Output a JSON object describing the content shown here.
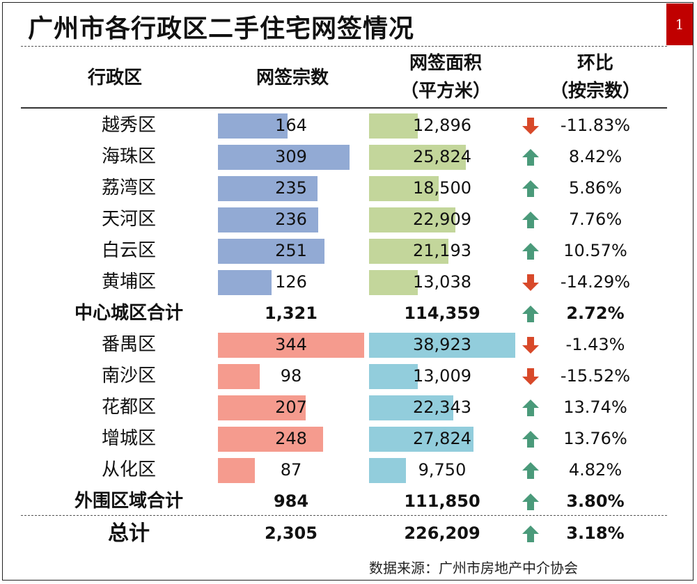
{
  "title": "广州市各行政区二手住宅网签情况",
  "page_number": "1",
  "headers": {
    "district": "行政区",
    "count": "网签宗数",
    "area_l1": "网签面积",
    "area_l2": "（平方米）",
    "ratio_l1": "环比",
    "ratio_l2": "（按宗数）"
  },
  "colors": {
    "core_count_bar": "#92aad4",
    "core_area_bar": "#c3d69b",
    "outer_count_bar": "#f59b8e",
    "outer_area_bar": "#92cddc",
    "arrow_up": "#4a9a7a",
    "arrow_down": "#d8492a",
    "page_badge": "#c00000"
  },
  "rows": [
    {
      "name": "越秀区",
      "count": "164",
      "count_value": 164,
      "area": "12,896",
      "area_value": 12896,
      "trend": "down",
      "change": "-11.83%",
      "group": "core"
    },
    {
      "name": "海珠区",
      "count": "309",
      "count_value": 309,
      "area": "25,824",
      "area_value": 25824,
      "trend": "up",
      "change": "8.42%",
      "group": "core"
    },
    {
      "name": "荔湾区",
      "count": "235",
      "count_value": 235,
      "area": "18,500",
      "area_value": 18500,
      "trend": "up",
      "change": "5.86%",
      "group": "core"
    },
    {
      "name": "天河区",
      "count": "236",
      "count_value": 236,
      "area": "22,909",
      "area_value": 22909,
      "trend": "up",
      "change": "7.76%",
      "group": "core"
    },
    {
      "name": "白云区",
      "count": "251",
      "count_value": 251,
      "area": "21,193",
      "area_value": 21193,
      "trend": "up",
      "change": "10.57%",
      "group": "core"
    },
    {
      "name": "黄埔区",
      "count": "126",
      "count_value": 126,
      "area": "13,038",
      "area_value": 13038,
      "trend": "down",
      "change": "-14.29%",
      "group": "core"
    },
    {
      "name": "中心城区合计",
      "count": "1,321",
      "area": "114,359",
      "trend": "up",
      "change": "2.72%",
      "group": "subtotal"
    },
    {
      "name": "番禺区",
      "count": "344",
      "count_value": 344,
      "area": "38,923",
      "area_value": 38923,
      "trend": "down",
      "change": "-1.43%",
      "group": "outer"
    },
    {
      "name": "南沙区",
      "count": "98",
      "count_value": 98,
      "area": "13,009",
      "area_value": 13009,
      "trend": "down",
      "change": "-15.52%",
      "group": "outer"
    },
    {
      "name": "花都区",
      "count": "207",
      "count_value": 207,
      "area": "22,343",
      "area_value": 22343,
      "trend": "up",
      "change": "13.74%",
      "group": "outer"
    },
    {
      "name": "增城区",
      "count": "248",
      "count_value": 248,
      "area": "27,824",
      "area_value": 27824,
      "trend": "up",
      "change": "13.76%",
      "group": "outer"
    },
    {
      "name": "从化区",
      "count": "87",
      "count_value": 87,
      "area": "9,750",
      "area_value": 9750,
      "trend": "up",
      "change": "4.82%",
      "group": "outer"
    },
    {
      "name": "外围区域合计",
      "count": "984",
      "area": "111,850",
      "trend": "up",
      "change": "3.80%",
      "group": "subtotal"
    },
    {
      "name": "总计",
      "count": "2,305",
      "area": "226,209",
      "trend": "up",
      "change": "3.18%",
      "group": "total"
    }
  ],
  "source": "数据来源：广州市房地产中介协会"
}
